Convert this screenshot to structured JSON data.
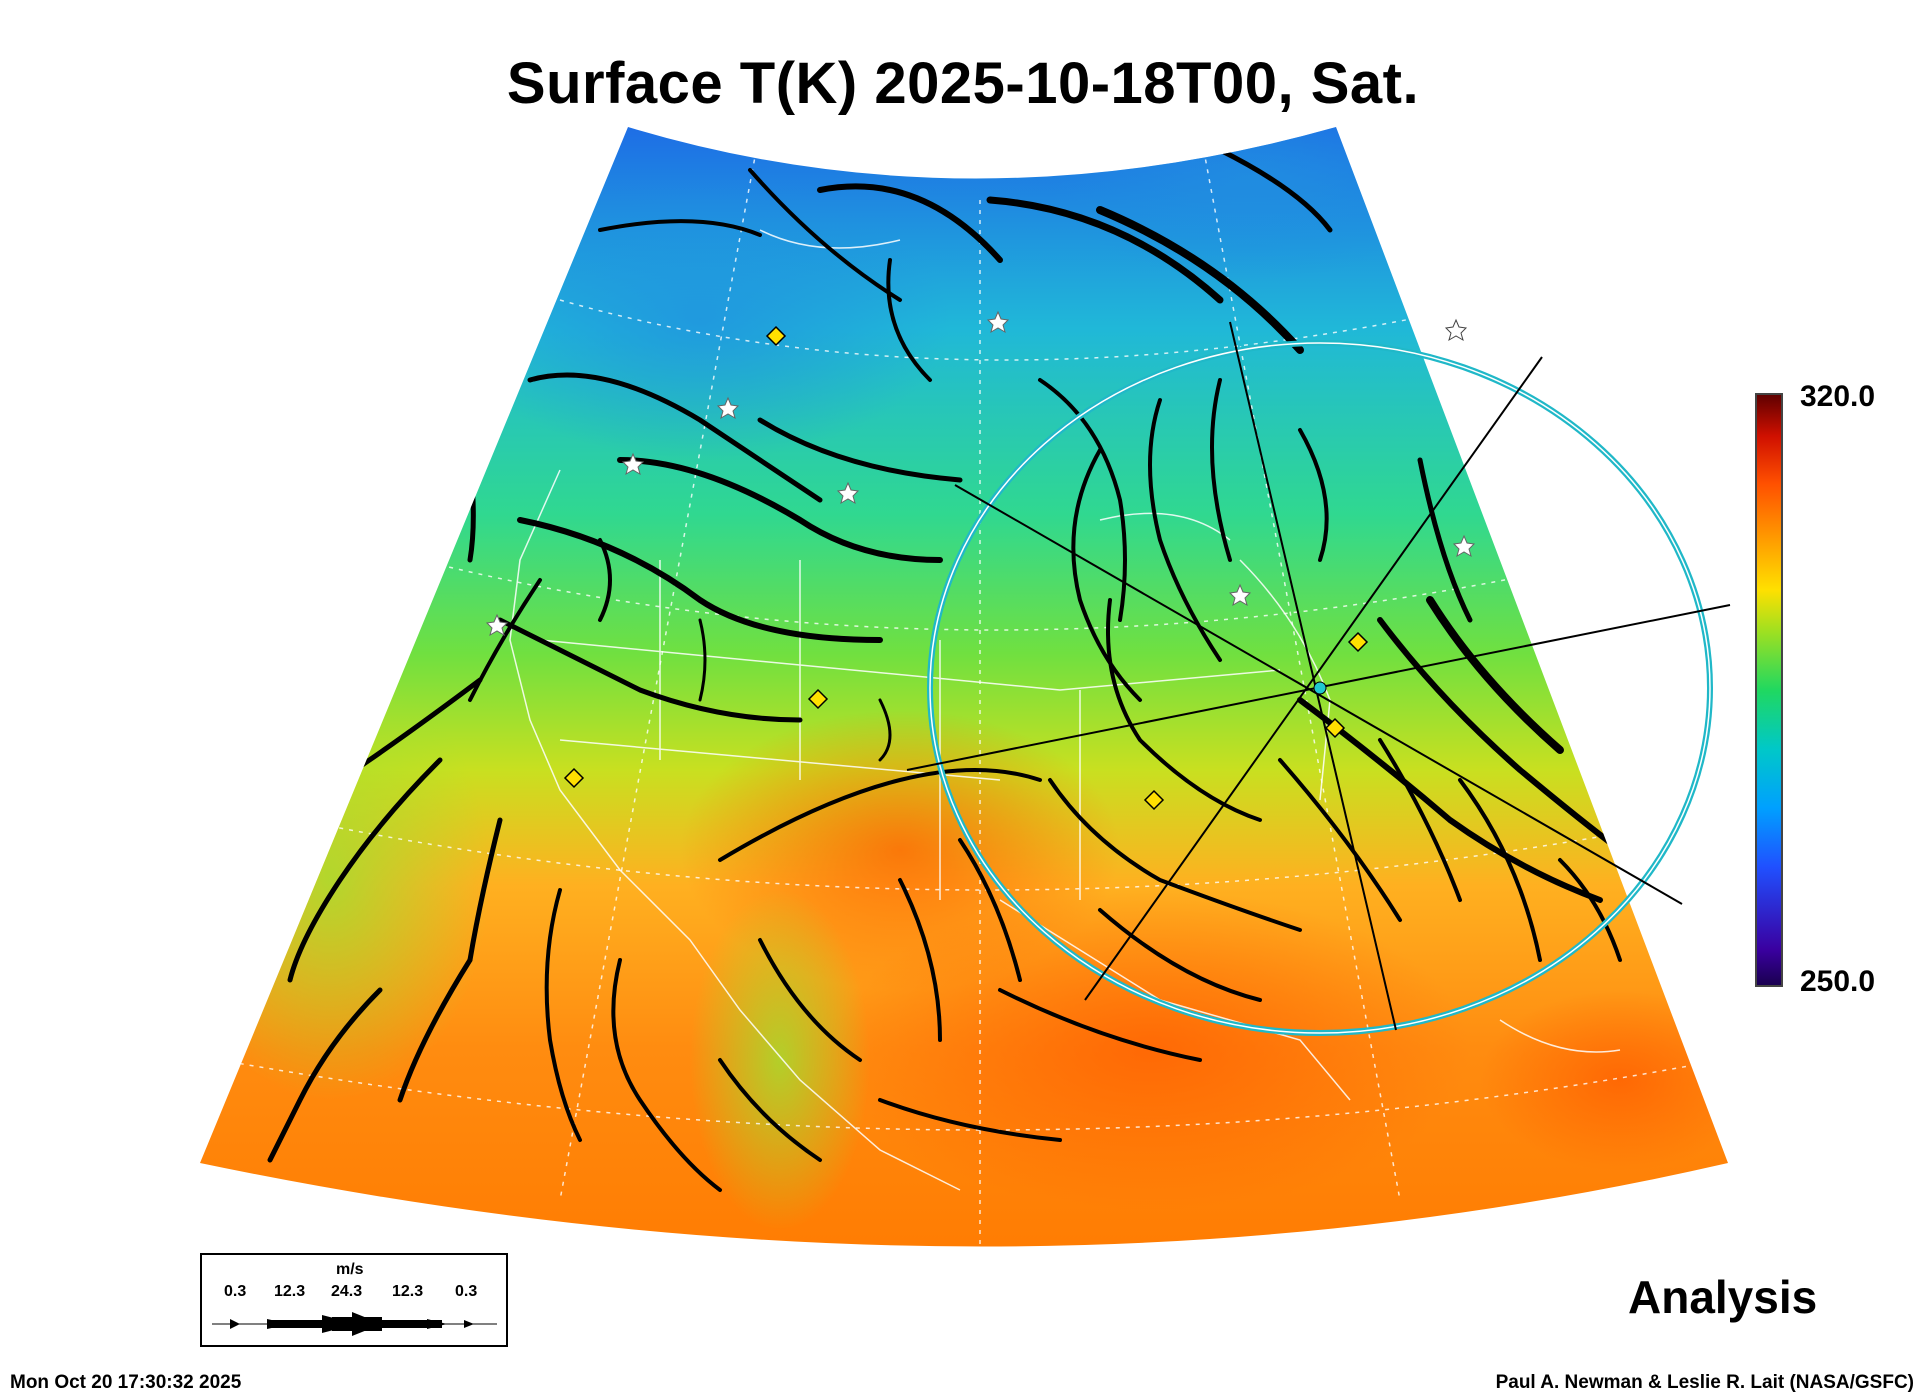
{
  "title": "Surface T(K) 2025-10-18T00, Sat.",
  "colorbar": {
    "max_label": "320.0",
    "min_label": "250.0",
    "max": 320.0,
    "min": 250.0
  },
  "panel_label": "Analysis",
  "legend": {
    "units": "m/s",
    "speeds": [
      "0.3",
      "12.3",
      "24.3",
      "12.3",
      "0.3"
    ]
  },
  "footer": {
    "timestamp": "Mon Oct 20 17:30:32 2025",
    "credit": "Paul A. Newman & Leslie R. Lait (NASA/GSFC)"
  },
  "colors": {
    "cold": "#1e64e6",
    "cool": "#20c8c8",
    "mid": "#60e040",
    "warm": "#ffa020",
    "hot": "#ff6a00",
    "streamline": "#000000",
    "circle": "#23c8d0",
    "marker": "#ffe000"
  }
}
